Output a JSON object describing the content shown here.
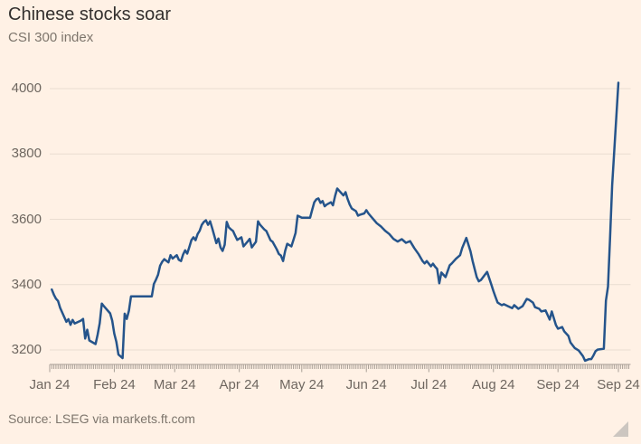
{
  "header": {
    "title": "Chinese stocks soar",
    "subtitle": "CSI 300 index"
  },
  "source": "Source: LSEG via markets.ft.com",
  "colors": {
    "background": "#fff1e5",
    "line": "#25548b",
    "gridline": "#e9ddd1",
    "axis": "#a89f96",
    "title_text": "#33302e",
    "muted_text": "#7d756c",
    "tick_text": "#6e6760"
  },
  "chart_data": {
    "type": "line",
    "title": "Chinese stocks soar",
    "subtitle": "CSI 300 index",
    "series_name": "CSI 300 index",
    "x_unit": "days since 2024-01-01",
    "grid": "horizontal",
    "legend": "none",
    "ylim": [
      3150,
      4060
    ],
    "y_ticks": [
      3200,
      3400,
      3600,
      3800,
      4000
    ],
    "x_ticks": [
      {
        "label": "Jan 24",
        "day": 0
      },
      {
        "label": "Feb 24",
        "day": 31
      },
      {
        "label": "Mar 24",
        "day": 60
      },
      {
        "label": "Apr 24",
        "day": 91
      },
      {
        "label": "May 24",
        "day": 121
      },
      {
        "label": "Jun 24",
        "day": 152
      },
      {
        "label": "Jul 24",
        "day": 182
      },
      {
        "label": "Aug 24",
        "day": 213
      },
      {
        "label": "Sep 24",
        "day": 244
      },
      {
        "label": "Sep 24",
        "day": 273
      }
    ],
    "minor_tick_every_days": 1,
    "points": [
      [
        1,
        3385
      ],
      [
        2,
        3369
      ],
      [
        3,
        3357
      ],
      [
        4,
        3350
      ],
      [
        5,
        3329
      ],
      [
        8,
        3286
      ],
      [
        9,
        3294
      ],
      [
        10,
        3277
      ],
      [
        11,
        3292
      ],
      [
        12,
        3281
      ],
      [
        15,
        3290
      ],
      [
        16,
        3295
      ],
      [
        17,
        3235
      ],
      [
        18,
        3262
      ],
      [
        19,
        3229
      ],
      [
        22,
        3218
      ],
      [
        23,
        3247
      ],
      [
        24,
        3282
      ],
      [
        25,
        3342
      ],
      [
        26,
        3334
      ],
      [
        29,
        3312
      ],
      [
        30,
        3290
      ],
      [
        31,
        3250
      ],
      [
        32,
        3225
      ],
      [
        33,
        3186
      ],
      [
        35,
        3175
      ],
      [
        36,
        3311
      ],
      [
        37,
        3295
      ],
      [
        38,
        3320
      ],
      [
        39,
        3364
      ],
      [
        49,
        3364
      ],
      [
        50,
        3402
      ],
      [
        51,
        3415
      ],
      [
        52,
        3430
      ],
      [
        53,
        3458
      ],
      [
        54,
        3470
      ],
      [
        55,
        3478
      ],
      [
        57,
        3468
      ],
      [
        58,
        3490
      ],
      [
        59,
        3480
      ],
      [
        61,
        3490
      ],
      [
        62,
        3476
      ],
      [
        63,
        3472
      ],
      [
        64,
        3492
      ],
      [
        65,
        3505
      ],
      [
        66,
        3495
      ],
      [
        67,
        3515
      ],
      [
        68,
        3536
      ],
      [
        69,
        3545
      ],
      [
        70,
        3536
      ],
      [
        71,
        3555
      ],
      [
        72,
        3565
      ],
      [
        73,
        3583
      ],
      [
        74,
        3592
      ],
      [
        75,
        3597
      ],
      [
        76,
        3583
      ],
      [
        77,
        3594
      ],
      [
        78,
        3573
      ],
      [
        79,
        3550
      ],
      [
        80,
        3527
      ],
      [
        81,
        3541
      ],
      [
        82,
        3514
      ],
      [
        83,
        3503
      ],
      [
        84,
        3522
      ],
      [
        85,
        3592
      ],
      [
        86,
        3575
      ],
      [
        87,
        3569
      ],
      [
        88,
        3564
      ],
      [
        89,
        3550
      ],
      [
        90,
        3537
      ],
      [
        92,
        3545
      ],
      [
        93,
        3517
      ],
      [
        95,
        3532
      ],
      [
        96,
        3540
      ],
      [
        97,
        3514
      ],
      [
        99,
        3531
      ],
      [
        100,
        3594
      ],
      [
        101,
        3583
      ],
      [
        103,
        3569
      ],
      [
        104,
        3564
      ],
      [
        106,
        3536
      ],
      [
        107,
        3531
      ],
      [
        109,
        3508
      ],
      [
        110,
        3494
      ],
      [
        111,
        3489
      ],
      [
        112,
        3472
      ],
      [
        113,
        3503
      ],
      [
        114,
        3525
      ],
      [
        116,
        3517
      ],
      [
        117,
        3537
      ],
      [
        118,
        3558
      ],
      [
        119,
        3611
      ],
      [
        121,
        3605
      ],
      [
        125,
        3605
      ],
      [
        126,
        3629
      ],
      [
        127,
        3652
      ],
      [
        128,
        3661
      ],
      [
        129,
        3664
      ],
      [
        130,
        3650
      ],
      [
        131,
        3656
      ],
      [
        132,
        3640
      ],
      [
        133,
        3645
      ],
      [
        135,
        3652
      ],
      [
        136,
        3643
      ],
      [
        137,
        3672
      ],
      [
        138,
        3694
      ],
      [
        139,
        3687
      ],
      [
        140,
        3680
      ],
      [
        141,
        3673
      ],
      [
        142,
        3683
      ],
      [
        143,
        3662
      ],
      [
        144,
        3645
      ],
      [
        145,
        3633
      ],
      [
        147,
        3625
      ],
      [
        148,
        3611
      ],
      [
        149,
        3614
      ],
      [
        151,
        3618
      ],
      [
        152,
        3628
      ],
      [
        153,
        3618
      ],
      [
        155,
        3603
      ],
      [
        157,
        3588
      ],
      [
        159,
        3578
      ],
      [
        161,
        3565
      ],
      [
        163,
        3555
      ],
      [
        165,
        3540
      ],
      [
        167,
        3532
      ],
      [
        169,
        3539
      ],
      [
        171,
        3528
      ],
      [
        173,
        3533
      ],
      [
        175,
        3512
      ],
      [
        177,
        3494
      ],
      [
        179,
        3472
      ],
      [
        180,
        3465
      ],
      [
        181,
        3472
      ],
      [
        183,
        3456
      ],
      [
        184,
        3464
      ],
      [
        185,
        3455
      ],
      [
        186,
        3448
      ],
      [
        187,
        3404
      ],
      [
        188,
        3437
      ],
      [
        190,
        3423
      ],
      [
        192,
        3459
      ],
      [
        193,
        3465
      ],
      [
        195,
        3479
      ],
      [
        197,
        3490
      ],
      [
        198,
        3512
      ],
      [
        200,
        3543
      ],
      [
        202,
        3502
      ],
      [
        203,
        3473
      ],
      [
        205,
        3423
      ],
      [
        206,
        3410
      ],
      [
        207,
        3414
      ],
      [
        209,
        3431
      ],
      [
        210,
        3439
      ],
      [
        212,
        3400
      ],
      [
        213,
        3380
      ],
      [
        214,
        3362
      ],
      [
        215,
        3345
      ],
      [
        217,
        3337
      ],
      [
        218,
        3340
      ],
      [
        220,
        3334
      ],
      [
        222,
        3328
      ],
      [
        223,
        3337
      ],
      [
        225,
        3326
      ],
      [
        227,
        3334
      ],
      [
        229,
        3356
      ],
      [
        230,
        3354
      ],
      [
        232,
        3345
      ],
      [
        233,
        3331
      ],
      [
        235,
        3326
      ],
      [
        236,
        3318
      ],
      [
        238,
        3321
      ],
      [
        240,
        3293
      ],
      [
        241,
        3318
      ],
      [
        243,
        3276
      ],
      [
        244,
        3265
      ],
      [
        246,
        3270
      ],
      [
        247,
        3257
      ],
      [
        249,
        3243
      ],
      [
        250,
        3223
      ],
      [
        252,
        3206
      ],
      [
        254,
        3198
      ],
      [
        256,
        3181
      ],
      [
        257,
        3167
      ],
      [
        259,
        3172
      ],
      [
        260,
        3172
      ],
      [
        261,
        3183
      ],
      [
        262,
        3196
      ],
      [
        263,
        3201
      ],
      [
        266,
        3204
      ],
      [
        267,
        3351
      ],
      [
        268,
        3394
      ],
      [
        269,
        3545
      ],
      [
        270,
        3704
      ],
      [
        273,
        4018
      ]
    ]
  }
}
